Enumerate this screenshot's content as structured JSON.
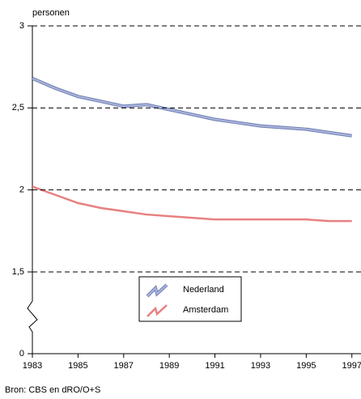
{
  "chart_data": {
    "type": "line",
    "y_axis_label": "personen",
    "source": "Bron: CBS en dRO/O+S",
    "x": [
      1983,
      1984,
      1985,
      1986,
      1987,
      1988,
      1989,
      1990,
      1991,
      1992,
      1993,
      1994,
      1995,
      1996,
      1997
    ],
    "series": [
      {
        "name": "Nederland",
        "color": "#aab4dc",
        "values": [
          2.68,
          2.62,
          2.57,
          2.54,
          2.51,
          2.52,
          2.49,
          2.46,
          2.43,
          2.41,
          2.39,
          2.38,
          2.37,
          2.35,
          2.33
        ]
      },
      {
        "name": "Amsterdam",
        "color": "#e88080",
        "values": [
          2.02,
          1.97,
          1.92,
          1.89,
          1.87,
          1.85,
          1.84,
          1.83,
          1.82,
          1.82,
          1.82,
          1.82,
          1.82,
          1.81,
          1.81
        ]
      }
    ],
    "xlim": [
      1983,
      1997.4
    ],
    "xticks": [
      1983,
      1985,
      1987,
      1989,
      1991,
      1993,
      1995,
      1997
    ],
    "ylim": [
      0,
      3
    ],
    "axis_break": [
      0,
      1.5
    ],
    "yticks": [
      0,
      {
        "value": 1.5,
        "label": "1,5"
      },
      2,
      {
        "value": 2.5,
        "label": "2,5"
      },
      3
    ],
    "grid": true
  }
}
